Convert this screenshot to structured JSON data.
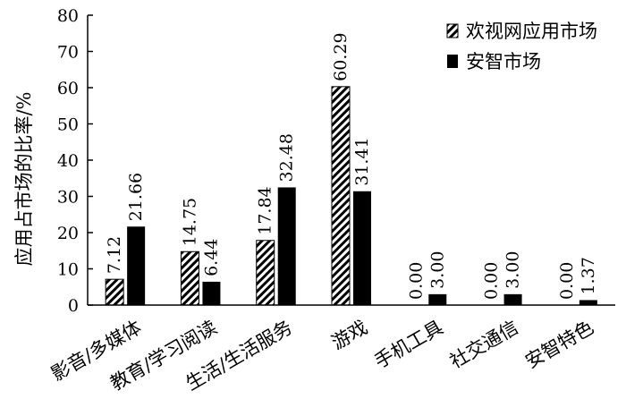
{
  "chart_data": {
    "type": "bar",
    "title": "",
    "xlabel": "",
    "ylabel": "应用占市场的比率/%",
    "ylim": [
      0,
      80
    ],
    "yticks": [
      0,
      10,
      20,
      30,
      40,
      50,
      60,
      70,
      80
    ],
    "grid": false,
    "legend_position": "top-right",
    "categories": [
      "影音/多媒体",
      "教育/学习阅读",
      "生活/生活服务",
      "游戏",
      "手机工具",
      "社交通信",
      "安智特色"
    ],
    "series": [
      {
        "name": "欢视网应用市场",
        "fill": "hatched",
        "values": [
          7.12,
          14.75,
          17.84,
          60.29,
          0.0,
          0.0,
          0.0
        ],
        "labels": [
          "7.12",
          "14.75",
          "17.84",
          "60.29",
          "0.00",
          "0.00",
          "0.00"
        ]
      },
      {
        "name": "安智市场",
        "fill": "solid",
        "values": [
          21.66,
          6.44,
          32.48,
          31.41,
          3.0,
          3.0,
          1.37
        ],
        "labels": [
          "21.66",
          "6.44",
          "32.48",
          "31.41",
          "3.00",
          "3.00",
          "1.37"
        ]
      }
    ],
    "colors": {
      "axis": "#000000",
      "bar": "#000000",
      "background": "#ffffff"
    }
  }
}
